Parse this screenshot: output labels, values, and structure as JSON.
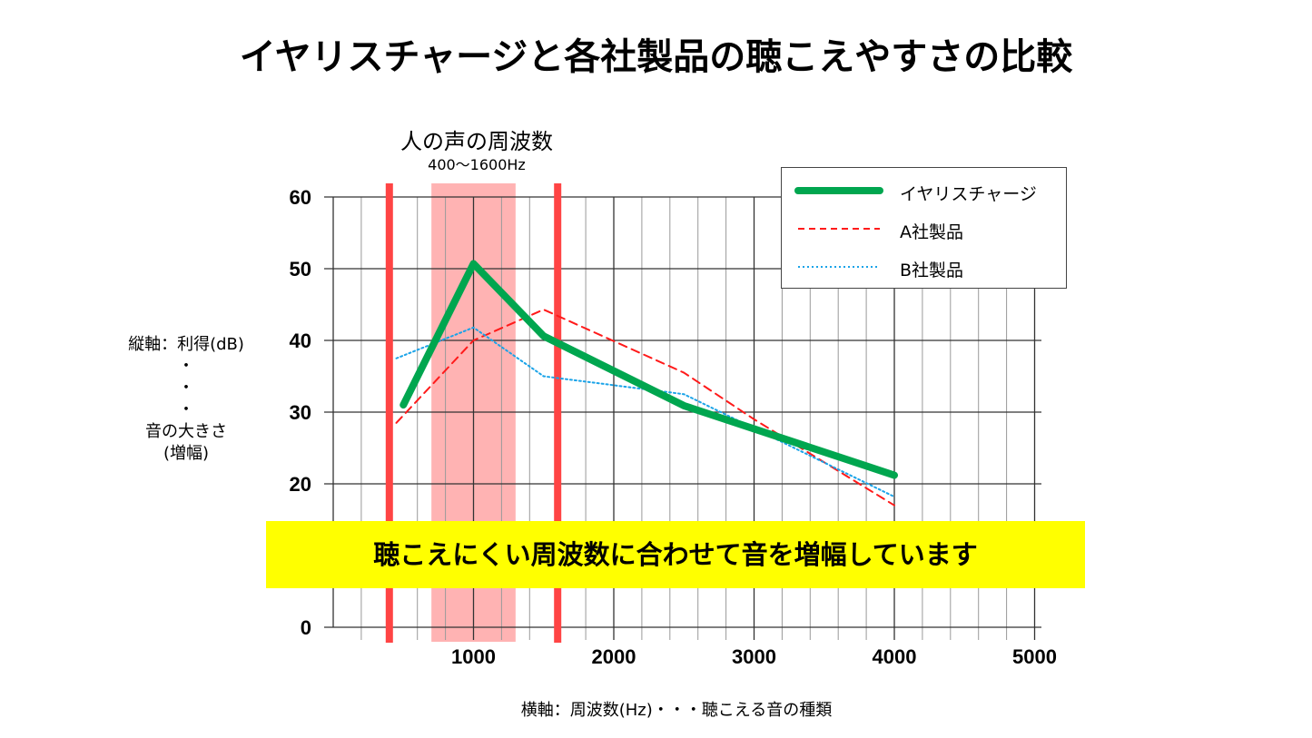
{
  "chart_data": {
    "type": "line",
    "title": "イヤリスチャージと各社製品の聴こえやすさの比較",
    "xlabel": "横軸：周波数(Hz)・・・聴こえる音の種類",
    "ylabel_lines": [
      "縦軸：利得(dB)",
      "・",
      "・",
      "・",
      "音の大きさ",
      "(増幅)"
    ],
    "xlim": [
      0,
      5000
    ],
    "ylim": [
      0,
      60
    ],
    "x_ticks": [
      1000,
      2000,
      3000,
      4000,
      5000
    ],
    "y_ticks": [
      0,
      20,
      30,
      40,
      50,
      60
    ],
    "grid": true,
    "legend_position": "top-right",
    "series": [
      {
        "name": "イヤリスチャージ",
        "color": "#00a64f",
        "style": "solid",
        "points": [
          [
            500,
            31
          ],
          [
            1000,
            50.7
          ],
          [
            1500,
            40.6
          ],
          [
            2500,
            30.9
          ],
          [
            4000,
            21.2
          ]
        ]
      },
      {
        "name": "A社製品",
        "color": "#ff1a1a",
        "style": "dashed",
        "points": [
          [
            450,
            28.5
          ],
          [
            1000,
            40
          ],
          [
            1500,
            44.3
          ],
          [
            2500,
            35.5
          ],
          [
            3000,
            29
          ],
          [
            4000,
            17
          ]
        ]
      },
      {
        "name": "B社製品",
        "color": "#1aa3e8",
        "style": "dotted",
        "points": [
          [
            450,
            37.5
          ],
          [
            1000,
            41.8
          ],
          [
            1500,
            35
          ],
          [
            2500,
            32.5
          ],
          [
            4000,
            18.2
          ]
        ]
      }
    ],
    "annotations": {
      "band_title": "人の声の周波数",
      "band_subtitle": "400〜1600Hz",
      "band_lines_hz": [
        400,
        1600
      ],
      "shaded_range_hz": [
        700,
        1300
      ],
      "banner": "聴こえにくい周波数に合わせて音を増幅しています"
    }
  }
}
